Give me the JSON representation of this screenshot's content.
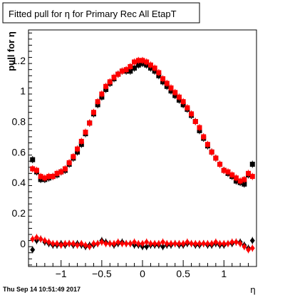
{
  "chart_data": {
    "type": "scatter",
    "title": "Fitted pull for η for Primary Rec All EtapT",
    "xlabel": "η",
    "ylabel": "pull for  η",
    "footer": "Thu Sep 14 10:51:49 2017",
    "xlim": [
      -1.4,
      1.4
    ],
    "ylim": [
      -0.15,
      1.4
    ],
    "x_ticks": [
      -1,
      -0.5,
      0,
      0.5,
      1
    ],
    "y_ticks": [
      0,
      0.2,
      0.4,
      0.6,
      0.8,
      1,
      1.2
    ],
    "x_tick_labels": [
      "−1",
      "−0.5",
      "0",
      "0.5",
      "1"
    ],
    "y_tick_labels": [
      "0",
      "0.2",
      "0.4",
      "0.6",
      "0.8",
      "1",
      "1.2"
    ],
    "grid": false,
    "legend": "none",
    "series": [
      {
        "marker": "square",
        "color": "#000000",
        "x": [
          -1.35,
          -1.3,
          -1.25,
          -1.2,
          -1.15,
          -1.1,
          -1.05,
          -1.0,
          -0.95,
          -0.9,
          -0.85,
          -0.8,
          -0.75,
          -0.7,
          -0.65,
          -0.6,
          -0.55,
          -0.5,
          -0.45,
          -0.4,
          -0.35,
          -0.3,
          -0.25,
          -0.2,
          -0.15,
          -0.1,
          -0.05,
          0.0,
          0.05,
          0.1,
          0.15,
          0.2,
          0.25,
          0.3,
          0.35,
          0.4,
          0.45,
          0.5,
          0.55,
          0.6,
          0.65,
          0.7,
          0.75,
          0.8,
          0.85,
          0.9,
          0.95,
          1.0,
          1.05,
          1.1,
          1.15,
          1.2,
          1.25,
          1.3,
          1.35
        ],
        "y": [
          0.55,
          0.47,
          0.42,
          0.42,
          0.43,
          0.44,
          0.45,
          0.47,
          0.48,
          0.52,
          0.56,
          0.6,
          0.65,
          0.72,
          0.79,
          0.85,
          0.91,
          0.96,
          1.01,
          1.05,
          1.08,
          1.11,
          1.13,
          1.13,
          1.13,
          1.15,
          1.17,
          1.18,
          1.17,
          1.15,
          1.13,
          1.1,
          1.06,
          1.03,
          1.0,
          0.97,
          0.94,
          0.91,
          0.88,
          0.84,
          0.8,
          0.74,
          0.69,
          0.64,
          0.6,
          0.56,
          0.52,
          0.48,
          0.46,
          0.44,
          0.41,
          0.4,
          0.39,
          0.45,
          0.52
        ]
      },
      {
        "marker": "square",
        "color": "#ff0000",
        "x": [
          -1.35,
          -1.3,
          -1.25,
          -1.2,
          -1.15,
          -1.1,
          -1.05,
          -1.0,
          -0.95,
          -0.9,
          -0.85,
          -0.8,
          -0.75,
          -0.7,
          -0.65,
          -0.6,
          -0.55,
          -0.5,
          -0.45,
          -0.4,
          -0.35,
          -0.3,
          -0.25,
          -0.2,
          -0.15,
          -0.1,
          -0.05,
          0.0,
          0.05,
          0.1,
          0.15,
          0.2,
          0.25,
          0.3,
          0.35,
          0.4,
          0.45,
          0.5,
          0.55,
          0.6,
          0.65,
          0.7,
          0.75,
          0.8,
          0.85,
          0.9,
          0.95,
          1.0,
          1.05,
          1.1,
          1.15,
          1.2,
          1.25,
          1.3,
          1.35
        ],
        "y": [
          0.49,
          0.48,
          0.44,
          0.43,
          0.44,
          0.44,
          0.46,
          0.47,
          0.49,
          0.53,
          0.57,
          0.62,
          0.67,
          0.73,
          0.79,
          0.86,
          0.93,
          0.98,
          1.03,
          1.06,
          1.09,
          1.11,
          1.13,
          1.14,
          1.16,
          1.19,
          1.2,
          1.2,
          1.19,
          1.17,
          1.15,
          1.12,
          1.08,
          1.05,
          1.02,
          0.99,
          0.96,
          0.93,
          0.89,
          0.85,
          0.8,
          0.76,
          0.7,
          0.65,
          0.6,
          0.56,
          0.52,
          0.48,
          0.47,
          0.45,
          0.43,
          0.41,
          0.42,
          0.46,
          0.44
        ]
      },
      {
        "marker": "diamond",
        "color": "#000000",
        "x": [
          -1.35,
          -1.3,
          -1.25,
          -1.2,
          -1.15,
          -1.1,
          -1.05,
          -1.0,
          -0.95,
          -0.9,
          -0.85,
          -0.8,
          -0.75,
          -0.7,
          -0.65,
          -0.6,
          -0.55,
          -0.5,
          -0.45,
          -0.4,
          -0.35,
          -0.3,
          -0.25,
          -0.2,
          -0.15,
          -0.1,
          -0.05,
          0.0,
          0.05,
          0.1,
          0.15,
          0.2,
          0.25,
          0.3,
          0.35,
          0.4,
          0.45,
          0.5,
          0.55,
          0.6,
          0.65,
          0.7,
          0.75,
          0.8,
          0.85,
          0.9,
          0.95,
          1.0,
          1.05,
          1.1,
          1.15,
          1.2,
          1.25,
          1.3,
          1.35
        ],
        "y": [
          -0.04,
          0.02,
          0.03,
          0.01,
          0.0,
          -0.01,
          -0.01,
          0.0,
          -0.01,
          0.0,
          -0.01,
          0.0,
          -0.01,
          -0.02,
          -0.01,
          -0.01,
          0.0,
          0.02,
          0.01,
          0.0,
          -0.01,
          0.0,
          0.01,
          0.0,
          0.0,
          -0.01,
          -0.01,
          -0.02,
          -0.02,
          -0.01,
          -0.01,
          -0.01,
          -0.02,
          -0.01,
          -0.01,
          0.0,
          -0.01,
          -0.01,
          0.0,
          0.0,
          -0.01,
          -0.01,
          0.0,
          -0.01,
          -0.01,
          0.0,
          -0.01,
          -0.01,
          0.0,
          0.0,
          0.01,
          0.01,
          -0.01,
          -0.03,
          0.02
        ]
      },
      {
        "marker": "diamond",
        "color": "#ff0000",
        "x": [
          -1.35,
          -1.3,
          -1.25,
          -1.2,
          -1.15,
          -1.1,
          -1.05,
          -1.0,
          -0.95,
          -0.9,
          -0.85,
          -0.8,
          -0.75,
          -0.7,
          -0.65,
          -0.6,
          -0.55,
          -0.5,
          -0.45,
          -0.4,
          -0.35,
          -0.3,
          -0.25,
          -0.2,
          -0.15,
          -0.1,
          -0.05,
          0.0,
          0.05,
          0.1,
          0.15,
          0.2,
          0.25,
          0.3,
          0.35,
          0.4,
          0.45,
          0.5,
          0.55,
          0.6,
          0.65,
          0.7,
          0.75,
          0.8,
          0.85,
          0.9,
          0.95,
          1.0,
          1.05,
          1.1,
          1.15,
          1.2,
          1.25,
          1.3,
          1.35
        ],
        "y": [
          0.03,
          0.04,
          0.03,
          0.02,
          0.01,
          0.0,
          0.0,
          -0.01,
          0.0,
          0.0,
          0.0,
          -0.01,
          0.0,
          -0.01,
          -0.02,
          0.0,
          0.0,
          0.01,
          0.0,
          0.0,
          0.0,
          0.01,
          0.0,
          0.0,
          0.0,
          0.01,
          0.0,
          0.0,
          0.01,
          0.0,
          0.0,
          0.0,
          0.01,
          0.0,
          0.0,
          0.0,
          0.0,
          0.0,
          0.01,
          0.0,
          0.0,
          0.0,
          0.0,
          0.0,
          0.0,
          0.01,
          0.0,
          0.0,
          0.0,
          0.01,
          0.01,
          0.0,
          -0.02,
          -0.04,
          -0.03
        ]
      }
    ]
  }
}
